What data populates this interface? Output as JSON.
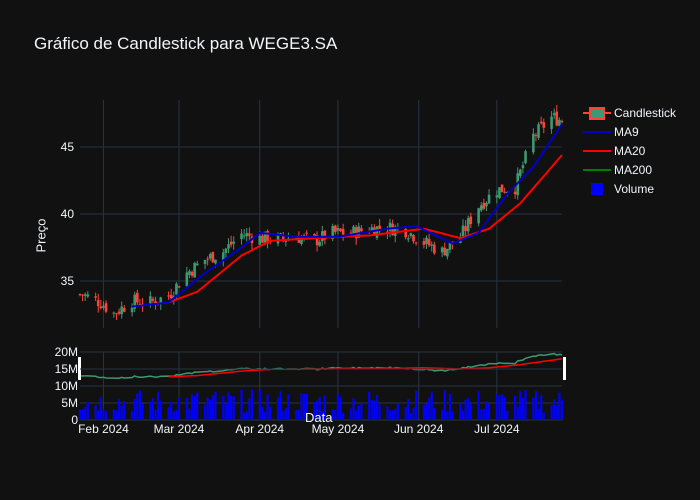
{
  "title": "Gráfico de Candlestick para WEGE3.SA",
  "legend": {
    "candlestick": "Candlestick",
    "ma9": "MA9",
    "ma20": "MA20",
    "ma200": "MA200",
    "volume": "Volume"
  },
  "colors": {
    "up": "#3d9970",
    "down": "#ff4136",
    "ma9": "#0000cd",
    "ma20": "#ff0000",
    "ma200": "#008000",
    "volume": "#0000ff",
    "background": "#111111",
    "grid": "#283442"
  },
  "chart_data": {
    "type": "candlestick",
    "title": "Gráfico de Candlestick para WEGE3.SA",
    "ylabel": "Preço",
    "xlabel": "Data",
    "ylim": [
      31.5,
      48.5
    ],
    "y_ticks": [
      35,
      40,
      45
    ],
    "volume_ticks": [
      0,
      5000000,
      10000000,
      15000000,
      20000000
    ],
    "volume_tick_labels": [
      "0",
      "5M",
      "10M",
      "15M",
      "20M"
    ],
    "x_ticks": [
      "Feb 2024",
      "Mar 2024",
      "Apr 2024",
      "May 2024",
      "Jun 2024",
      "Jul 2024"
    ],
    "x_tick_dates": [
      "2024-02-01",
      "2024-03-01",
      "2024-04-01",
      "2024-05-01",
      "2024-06-01",
      "2024-07-01"
    ],
    "x_range": [
      "2024-01-23",
      "2024-07-26"
    ],
    "legend_position": "top-right",
    "close_anchors": [
      [
        "2024-01-24",
        34.0
      ],
      [
        "2024-01-31",
        33.4
      ],
      [
        "2024-02-05",
        32.6
      ],
      [
        "2024-02-12",
        33.5
      ],
      [
        "2024-02-19",
        33.4
      ],
      [
        "2024-02-26",
        33.9
      ],
      [
        "2024-03-04",
        35.6
      ],
      [
        "2024-03-11",
        36.6
      ],
      [
        "2024-03-18",
        37.2
      ],
      [
        "2024-03-25",
        38.5
      ],
      [
        "2024-04-01",
        38.2
      ],
      [
        "2024-04-08",
        38.1
      ],
      [
        "2024-04-15",
        38.3
      ],
      [
        "2024-04-22",
        38.0
      ],
      [
        "2024-04-29",
        38.6
      ],
      [
        "2024-05-06",
        38.6
      ],
      [
        "2024-05-13",
        38.9
      ],
      [
        "2024-05-20",
        39.0
      ],
      [
        "2024-05-27",
        38.8
      ],
      [
        "2024-06-03",
        37.9
      ],
      [
        "2024-06-10",
        37.2
      ],
      [
        "2024-06-17",
        38.3
      ],
      [
        "2024-06-24",
        40.6
      ],
      [
        "2024-07-01",
        41.8
      ],
      [
        "2024-07-08",
        42.0
      ],
      [
        "2024-07-15",
        45.8
      ],
      [
        "2024-07-22",
        47.2
      ],
      [
        "2024-07-26",
        47.0
      ]
    ],
    "ma9_anchors": [
      [
        "2024-02-12",
        33.1
      ],
      [
        "2024-02-26",
        33.4
      ],
      [
        "2024-03-11",
        35.6
      ],
      [
        "2024-03-25",
        37.5
      ],
      [
        "2024-04-01",
        38.6
      ],
      [
        "2024-04-15",
        38.3
      ],
      [
        "2024-05-01",
        38.3
      ],
      [
        "2024-05-20",
        38.9
      ],
      [
        "2024-05-31",
        39.1
      ],
      [
        "2024-06-14",
        37.8
      ],
      [
        "2024-06-24",
        38.6
      ],
      [
        "2024-07-05",
        41.5
      ],
      [
        "2024-07-15",
        43.5
      ],
      [
        "2024-07-26",
        46.7
      ]
    ],
    "ma20_anchors": [
      [
        "2024-02-26",
        33.4
      ],
      [
        "2024-03-08",
        34.2
      ],
      [
        "2024-03-25",
        36.9
      ],
      [
        "2024-04-05",
        38.0
      ],
      [
        "2024-04-22",
        38.2
      ],
      [
        "2024-05-13",
        38.4
      ],
      [
        "2024-06-03",
        38.9
      ],
      [
        "2024-06-17",
        38.2
      ],
      [
        "2024-06-28",
        38.9
      ],
      [
        "2024-07-10",
        40.8
      ],
      [
        "2024-07-26",
        44.4
      ]
    ],
    "volume_range": [
      2000000,
      9000000
    ]
  }
}
